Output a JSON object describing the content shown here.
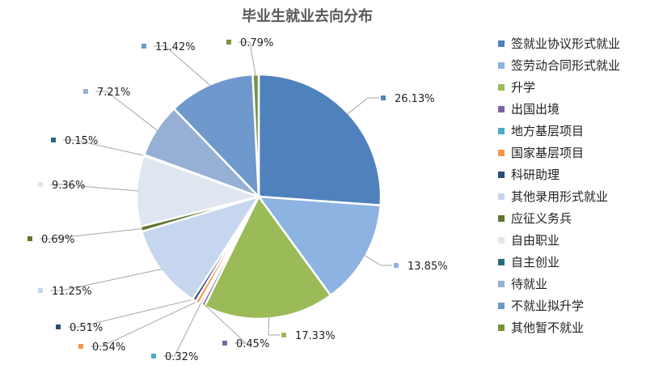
{
  "chart_data": {
    "type": "pie",
    "title": "毕业生就业去向分布",
    "start_angle": "top, clockwise",
    "legend_position": "right",
    "slices": [
      {
        "label": "签就业协议形式就业",
        "value": 26.13,
        "display": "26.13%",
        "color": "#4f81bd"
      },
      {
        "label": "签劳动合同形式就业",
        "value": 13.85,
        "display": "13.85%",
        "color": "#8db3e2"
      },
      {
        "label": "升学",
        "value": 17.33,
        "display": "17.33%",
        "color": "#9bbb59"
      },
      {
        "label": "出国出境",
        "value": 0.45,
        "display": "0.45%",
        "color": "#8064a2"
      },
      {
        "label": "地方基层项目",
        "value": 0.32,
        "display": "0.32%",
        "color": "#4bacc6"
      },
      {
        "label": "国家基层项目",
        "value": 0.54,
        "display": "0.54%",
        "color": "#f79646"
      },
      {
        "label": "科研助理",
        "value": 0.51,
        "display": "0.51%",
        "color": "#2c4d75"
      },
      {
        "label": "其他录用形式就业",
        "value": 11.25,
        "display": "11.25%",
        "color": "#c6d6ee"
      },
      {
        "label": "应征义务兵",
        "value": 0.69,
        "display": "0.69%",
        "color": "#5f7530"
      },
      {
        "label": "自由职业",
        "value": 9.36,
        "display": "9.36%",
        "color": "#dfe6ef"
      },
      {
        "label": "自主创业",
        "value": 0.15,
        "display": "0.15%",
        "color": "#276a7c"
      },
      {
        "label": "待就业",
        "value": 7.21,
        "display": "7.21%",
        "color": "#95b0d4"
      },
      {
        "label": "不就业拟升学",
        "value": 11.42,
        "display": "11.42%",
        "color": "#6f98cc"
      },
      {
        "label": "其他暂不就业",
        "value": 0.79,
        "display": "0.79%",
        "color": "#77933c"
      }
    ]
  }
}
